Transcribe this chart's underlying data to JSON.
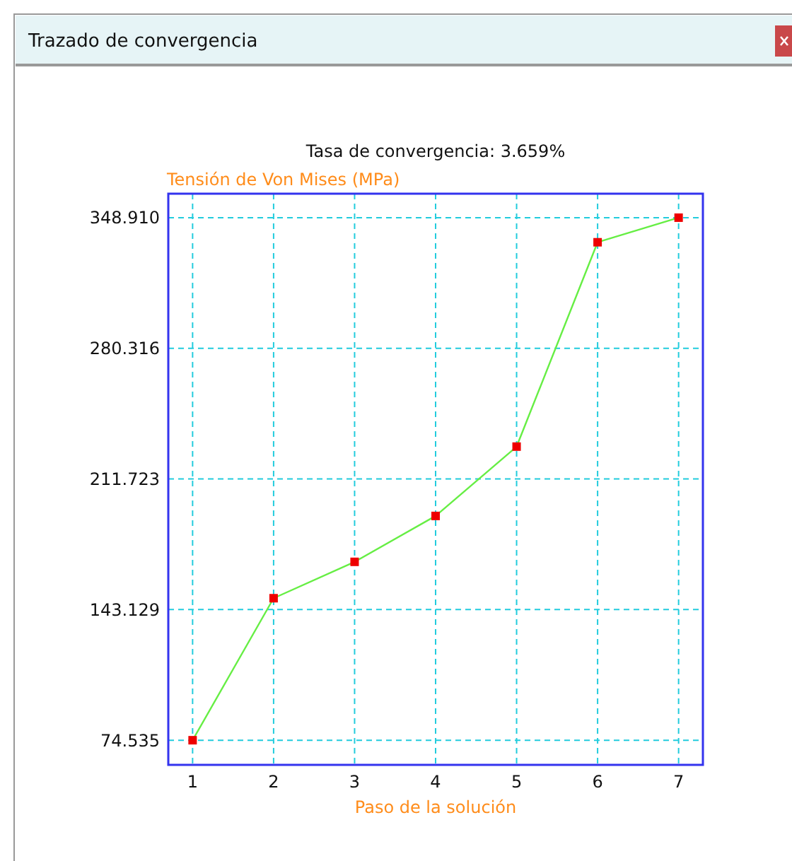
{
  "chart_data": {
    "type": "line",
    "title": "Tasa de convergencia: 3.659%",
    "xlabel": "Paso de la solución",
    "ylabel": "Tensión de Von Mises (MPa)",
    "annotations": [
      "Trazado de convergencia"
    ],
    "x": [
      1,
      2,
      3,
      4,
      5,
      6,
      7
    ],
    "series": [
      {
        "color": "#66ee44",
        "values": [
          74.535,
          149.1,
          168.2,
          192.3,
          228.7,
          336.0,
          348.91
        ]
      }
    ],
    "xlim": [
      0.7,
      7.3
    ],
    "xticks": [
      1,
      2,
      3,
      4,
      5,
      6,
      7
    ],
    "ylim": [
      61.6,
      361.5
    ],
    "yticks": [
      {
        "value": 74.535,
        "label": "74.535"
      },
      {
        "value": 143.129,
        "label": "143.129"
      },
      {
        "value": 211.723,
        "label": "211.723"
      },
      {
        "value": 280.316,
        "label": "280.316"
      },
      {
        "value": 348.91,
        "label": "348.910"
      }
    ],
    "grid": true,
    "marker": "square",
    "line_style": "solid"
  }
}
